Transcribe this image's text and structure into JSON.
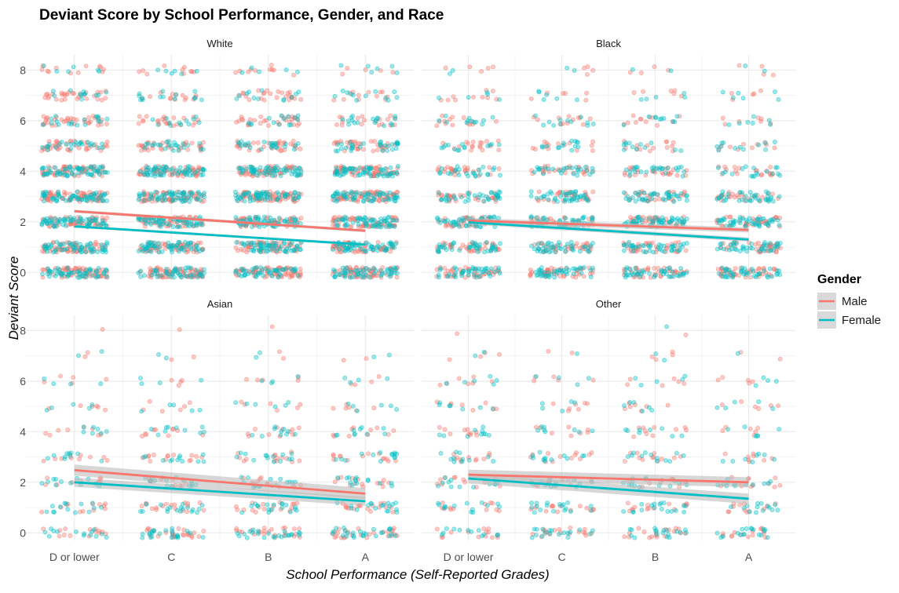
{
  "chart_data": {
    "type": "scatter",
    "title": "Deviant Score by School Performance, Gender, and Race",
    "xlabel": "School Performance (Self-Reported Grades)",
    "ylabel": "Deviant Score",
    "categories": [
      "D or lower",
      "C",
      "B",
      "A"
    ],
    "y_ticks": [
      0,
      2,
      4,
      6,
      8
    ],
    "ylim": [
      -0.3,
      8.6
    ],
    "grid": true,
    "legend": {
      "title": "Gender",
      "position": "right",
      "entries": [
        {
          "name": "Male",
          "color": "#F8766D"
        },
        {
          "name": "Female",
          "color": "#00BFC4"
        }
      ]
    },
    "colors": {
      "Male": "#F8766D",
      "Female": "#00BFC4",
      "band": "#BDBDBD",
      "grid": "#EBEBEB"
    },
    "panels": [
      {
        "label": "White",
        "density": [
          [
            [
              0.55,
              0.45
            ],
            [
              0.6,
              0.4
            ],
            [
              0.6,
              0.4
            ],
            [
              0.55,
              0.45
            ]
          ],
          [
            [
              0.5,
              0.5
            ],
            [
              0.5,
              0.5
            ],
            [
              0.5,
              0.5
            ],
            [
              0.5,
              0.5
            ]
          ],
          [
            [
              0.5,
              0.5
            ],
            [
              0.5,
              0.5
            ],
            [
              0.5,
              0.5
            ],
            [
              0.5,
              0.5
            ]
          ],
          [
            [
              0.6,
              0.5
            ],
            [
              0.6,
              0.5
            ],
            [
              0.6,
              0.5
            ],
            [
              0.6,
              0.5
            ]
          ],
          [
            [
              0.5,
              0.5
            ],
            [
              0.5,
              0.5
            ],
            [
              0.5,
              0.5
            ],
            [
              0.5,
              0.5
            ]
          ],
          [
            [
              0.35,
              0.2
            ],
            [
              0.3,
              0.2
            ],
            [
              0.3,
              0.2
            ],
            [
              0.3,
              0.25
            ]
          ],
          [
            [
              0.3,
              0.15
            ],
            [
              0.2,
              0.1
            ],
            [
              0.25,
              0.12
            ],
            [
              0.15,
              0.15
            ]
          ],
          [
            [
              0.25,
              0.1
            ],
            [
              0.12,
              0.12
            ],
            [
              0.2,
              0.1
            ],
            [
              0.1,
              0.1
            ]
          ],
          [
            [
              0.1,
              0.05
            ],
            [
              0.08,
              0.05
            ],
            [
              0.08,
              0.04
            ],
            [
              0.04,
              0.05
            ]
          ]
        ],
        "fits": [
          {
            "group": "Male",
            "start": 2.42,
            "end": 1.65,
            "ci": 0.06
          },
          {
            "group": "Female",
            "start": 1.82,
            "end": 1.1,
            "ci": 0.05
          }
        ]
      },
      {
        "label": "Black",
        "density": [
          [
            [
              0.35,
              0.35
            ],
            [
              0.35,
              0.35
            ],
            [
              0.35,
              0.35
            ],
            [
              0.35,
              0.35
            ]
          ],
          [
            [
              0.3,
              0.35
            ],
            [
              0.3,
              0.35
            ],
            [
              0.3,
              0.35
            ],
            [
              0.3,
              0.35
            ]
          ],
          [
            [
              0.3,
              0.4
            ],
            [
              0.3,
              0.4
            ],
            [
              0.3,
              0.45
            ],
            [
              0.3,
              0.4
            ]
          ],
          [
            [
              0.25,
              0.3
            ],
            [
              0.25,
              0.35
            ],
            [
              0.25,
              0.35
            ],
            [
              0.22,
              0.3
            ]
          ],
          [
            [
              0.22,
              0.2
            ],
            [
              0.22,
              0.22
            ],
            [
              0.22,
              0.22
            ],
            [
              0.15,
              0.15
            ]
          ],
          [
            [
              0.15,
              0.12
            ],
            [
              0.12,
              0.12
            ],
            [
              0.12,
              0.1
            ],
            [
              0.08,
              0.1
            ]
          ],
          [
            [
              0.12,
              0.1
            ],
            [
              0.1,
              0.1
            ],
            [
              0.1,
              0.08
            ],
            [
              0.06,
              0.06
            ]
          ],
          [
            [
              0.08,
              0.04
            ],
            [
              0.05,
              0.05
            ],
            [
              0.05,
              0.04
            ],
            [
              0.04,
              0.05
            ]
          ],
          [
            [
              0.04,
              0.02
            ],
            [
              0.03,
              0.02
            ],
            [
              0.03,
              0.02
            ],
            [
              0.03,
              0.02
            ]
          ]
        ],
        "fits": [
          {
            "group": "Male",
            "start": 2.05,
            "end": 1.68,
            "ci": 0.1
          },
          {
            "group": "Female",
            "start": 1.98,
            "end": 1.3,
            "ci": 0.08
          }
        ]
      },
      {
        "label": "Asian",
        "density": [
          [
            [
              0.12,
              0.12
            ],
            [
              0.2,
              0.2
            ],
            [
              0.2,
              0.2
            ],
            [
              0.22,
              0.22
            ]
          ],
          [
            [
              0.1,
              0.12
            ],
            [
              0.15,
              0.15
            ],
            [
              0.15,
              0.15
            ],
            [
              0.15,
              0.15
            ]
          ],
          [
            [
              0.08,
              0.1
            ],
            [
              0.1,
              0.12
            ],
            [
              0.12,
              0.12
            ],
            [
              0.12,
              0.12
            ]
          ],
          [
            [
              0.08,
              0.08
            ],
            [
              0.12,
              0.1
            ],
            [
              0.12,
              0.12
            ],
            [
              0.12,
              0.12
            ]
          ],
          [
            [
              0.07,
              0.06
            ],
            [
              0.08,
              0.08
            ],
            [
              0.09,
              0.08
            ],
            [
              0.08,
              0.08
            ]
          ],
          [
            [
              0.05,
              0.04
            ],
            [
              0.05,
              0.04
            ],
            [
              0.05,
              0.05
            ],
            [
              0.05,
              0.05
            ]
          ],
          [
            [
              0.04,
              0.03
            ],
            [
              0.03,
              0.03
            ],
            [
              0.04,
              0.03
            ],
            [
              0.03,
              0.03
            ]
          ],
          [
            [
              0.02,
              0.02
            ],
            [
              0.02,
              0.02
            ],
            [
              0.02,
              0.02
            ],
            [
              0.02,
              0.02
            ]
          ],
          [
            [
              0.01,
              0.0
            ],
            [
              0.01,
              0.0
            ],
            [
              0.01,
              0.0
            ],
            [
              0.0,
              0.0
            ]
          ]
        ],
        "fits": [
          {
            "group": "Male",
            "start": 2.48,
            "end": 1.55,
            "ci": 0.22
          },
          {
            "group": "Female",
            "start": 2.0,
            "end": 1.25,
            "ci": 0.18
          }
        ]
      },
      {
        "label": "Other",
        "density": [
          [
            [
              0.12,
              0.1
            ],
            [
              0.15,
              0.15
            ],
            [
              0.15,
              0.15
            ],
            [
              0.12,
              0.15
            ]
          ],
          [
            [
              0.1,
              0.12
            ],
            [
              0.12,
              0.15
            ],
            [
              0.12,
              0.15
            ],
            [
              0.1,
              0.12
            ]
          ],
          [
            [
              0.1,
              0.1
            ],
            [
              0.1,
              0.12
            ],
            [
              0.1,
              0.12
            ],
            [
              0.1,
              0.1
            ]
          ],
          [
            [
              0.09,
              0.09
            ],
            [
              0.1,
              0.1
            ],
            [
              0.1,
              0.1
            ],
            [
              0.07,
              0.07
            ]
          ],
          [
            [
              0.08,
              0.08
            ],
            [
              0.07,
              0.07
            ],
            [
              0.08,
              0.07
            ],
            [
              0.05,
              0.05
            ]
          ],
          [
            [
              0.07,
              0.06
            ],
            [
              0.06,
              0.04
            ],
            [
              0.06,
              0.05
            ],
            [
              0.05,
              0.04
            ]
          ],
          [
            [
              0.06,
              0.05
            ],
            [
              0.04,
              0.03
            ],
            [
              0.05,
              0.04
            ],
            [
              0.04,
              0.03
            ]
          ],
          [
            [
              0.03,
              0.02
            ],
            [
              0.02,
              0.01
            ],
            [
              0.03,
              0.02
            ],
            [
              0.02,
              0.01
            ]
          ],
          [
            [
              0.01,
              0.0
            ],
            [
              0.0,
              0.0
            ],
            [
              0.01,
              0.01
            ],
            [
              0.0,
              0.0
            ]
          ]
        ],
        "fits": [
          {
            "group": "Male",
            "start": 2.3,
            "end": 2.0,
            "ci": 0.2
          },
          {
            "group": "Female",
            "start": 2.15,
            "end": 1.35,
            "ci": 0.2
          }
        ]
      }
    ]
  }
}
